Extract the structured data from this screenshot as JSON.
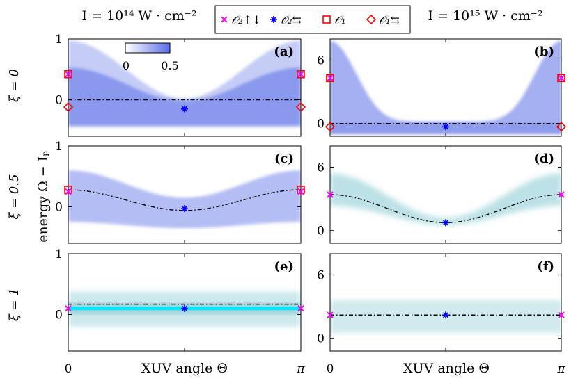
{
  "header": {
    "left_intensity": "I = 10¹⁴ W · cm⁻²",
    "right_intensity": "I = 10¹⁵ W · cm⁻²"
  },
  "legend": [
    {
      "label": "𝒪₂↑↓",
      "marker": "x",
      "color": "#ff00ff"
    },
    {
      "label": "𝒪₂⇆",
      "marker": "asterisk",
      "color": "#0000ff"
    },
    {
      "label": "𝒪₁",
      "marker": "square",
      "color": "#ff0000"
    },
    {
      "label": "𝒪₁⇆",
      "marker": "diamond",
      "color": "#ff0000"
    }
  ],
  "row_labels": [
    "ξ = 0",
    "ξ = 0.5",
    "ξ = 1"
  ],
  "y_axis_label": "energy Ω − Iₚ",
  "x_axis_label": "XUV angle Θ",
  "x_ticks": [
    "0",
    "π"
  ],
  "colorbar": {
    "min_label": "0",
    "max_label": "0.5",
    "color_low": "#ffffff",
    "color_high": "#5a6ee6"
  },
  "colors": {
    "blue_map": "#5a6ee6",
    "teal_map": "#5ab4c0",
    "cyan_line": "#00e5ff",
    "dash_line": "#000000"
  },
  "chart_data": [
    {
      "panel": "(a)",
      "type": "heatmap",
      "xi": 0,
      "intensity": "1e14",
      "xlim": [
        0,
        3.1416
      ],
      "ylim": [
        -0.6,
        1
      ],
      "yticks": [
        0,
        1
      ],
      "ytick_labels": [
        "0",
        "1"
      ],
      "dashed_level": 0.0,
      "markers": {
        "O2_updown": [
          [
            0,
            0.42
          ],
          [
            3.1416,
            0.42
          ]
        ],
        "O2_lr": [
          [
            1.5708,
            -0.15
          ]
        ],
        "O1": [
          [
            0,
            0.42
          ],
          [
            3.1416,
            0.42
          ]
        ],
        "O1_lr": [
          [
            0,
            -0.12
          ],
          [
            3.1416,
            -0.12
          ]
        ]
      }
    },
    {
      "panel": "(b)",
      "type": "heatmap",
      "xi": 0,
      "intensity": "1e15",
      "xlim": [
        0,
        3.1416
      ],
      "ylim": [
        -1.2,
        8
      ],
      "yticks": [
        0,
        6
      ],
      "ytick_labels": [
        "0",
        "6"
      ],
      "dashed_level": 0.0,
      "markers": {
        "O2_updown": [
          [
            0,
            4.3
          ],
          [
            3.1416,
            4.3
          ]
        ],
        "O2_lr": [
          [
            1.5708,
            -0.3
          ]
        ],
        "O1": [
          [
            0,
            4.3
          ],
          [
            3.1416,
            4.3
          ]
        ],
        "O1_lr": [
          [
            0,
            -0.3
          ],
          [
            3.1416,
            -0.3
          ]
        ]
      }
    },
    {
      "panel": "(c)",
      "type": "heatmap",
      "xi": 0.5,
      "intensity": "1e14",
      "xlim": [
        0,
        3.1416
      ],
      "ylim": [
        -0.6,
        1
      ],
      "yticks": [
        0,
        1
      ],
      "ytick_labels": [
        "0",
        "1"
      ],
      "dashed_curve": {
        "edge": 0.28,
        "center": -0.06
      },
      "markers": {
        "O2_updown": [
          [
            0,
            0.25
          ],
          [
            3.1416,
            0.25
          ]
        ],
        "O2_lr": [
          [
            1.5708,
            -0.03
          ]
        ],
        "O1": [
          [
            0,
            0.28
          ],
          [
            3.1416,
            0.28
          ]
        ]
      }
    },
    {
      "panel": "(d)",
      "type": "heatmap",
      "xi": 0.5,
      "intensity": "1e15",
      "xlim": [
        0,
        3.1416
      ],
      "ylim": [
        -1.2,
        8
      ],
      "yticks": [
        0,
        6
      ],
      "ytick_labels": [
        "0",
        "6"
      ],
      "dashed_curve": {
        "edge": 3.4,
        "center": 0.75
      },
      "markers": {
        "O2_updown": [
          [
            0,
            3.4
          ],
          [
            3.1416,
            3.4
          ]
        ],
        "O2_lr": [
          [
            1.5708,
            0.75
          ]
        ]
      }
    },
    {
      "panel": "(e)",
      "type": "heatmap",
      "xi": 1,
      "intensity": "1e14",
      "xlim": [
        0,
        3.1416
      ],
      "ylim": [
        -0.6,
        1
      ],
      "yticks": [
        0,
        1
      ],
      "ytick_labels": [
        "0",
        "1"
      ],
      "dashed_level": 0.17,
      "cyan_level": 0.1,
      "markers": {
        "O2_updown": [
          [
            0,
            0.1
          ],
          [
            3.1416,
            0.1
          ]
        ],
        "O2_lr": [
          [
            1.5708,
            0.1
          ]
        ]
      }
    },
    {
      "panel": "(f)",
      "type": "heatmap",
      "xi": 1,
      "intensity": "1e15",
      "xlim": [
        0,
        3.1416
      ],
      "ylim": [
        -1.2,
        8
      ],
      "yticks": [
        0,
        6
      ],
      "ytick_labels": [
        "0",
        "6"
      ],
      "dashed_level": 2.2,
      "markers": {
        "O2_updown": [
          [
            0,
            2.2
          ],
          [
            3.1416,
            2.2
          ]
        ],
        "O2_lr": [
          [
            1.5708,
            2.2
          ]
        ]
      }
    }
  ]
}
